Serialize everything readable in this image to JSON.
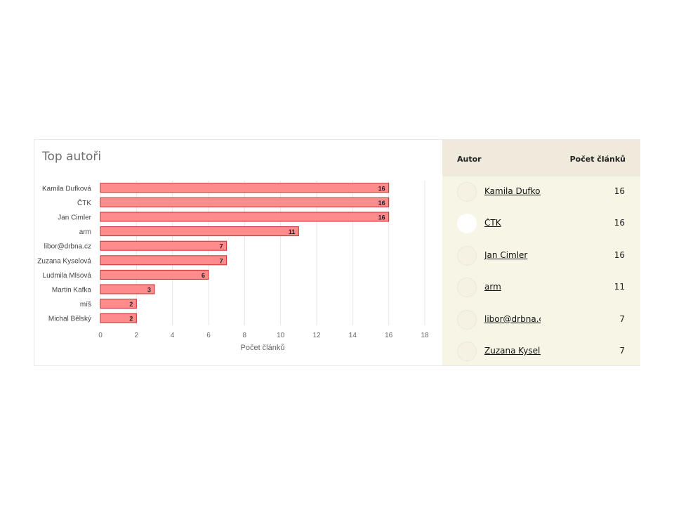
{
  "panel_title": "Top autoři",
  "chart_data": {
    "type": "bar",
    "orientation": "horizontal",
    "categories": [
      "Kamila Dufková",
      "ČTK",
      "Jan Cimler",
      "arm",
      "libor@drbna.cz",
      "Zuzana Kyselová",
      "Ludmila Mlsová",
      "Martin Kafka",
      "míš",
      "Michal Bělský"
    ],
    "values": [
      16,
      16,
      16,
      11,
      7,
      7,
      6,
      3,
      2,
      2
    ],
    "xlabel": "Počet článků",
    "ylabel": "",
    "xlim": [
      0,
      18
    ],
    "xticks": [
      0,
      2,
      4,
      6,
      8,
      10,
      12,
      14,
      16,
      18
    ],
    "grid": true,
    "bar_color": "#ff8c8c",
    "bar_border_color": "#cc2a2a"
  },
  "table": {
    "headers": {
      "author": "Autor",
      "count": "Počet článků"
    },
    "rows": [
      {
        "author": "Kamila Dufková",
        "count": "16"
      },
      {
        "author": "ČTK",
        "count": "16"
      },
      {
        "author": "Jan Cimler",
        "count": "16"
      },
      {
        "author": "arm",
        "count": "11"
      },
      {
        "author": "libor@drbna.cz",
        "count": "7"
      },
      {
        "author": "Zuzana Kyselová",
        "count": "7"
      }
    ]
  }
}
